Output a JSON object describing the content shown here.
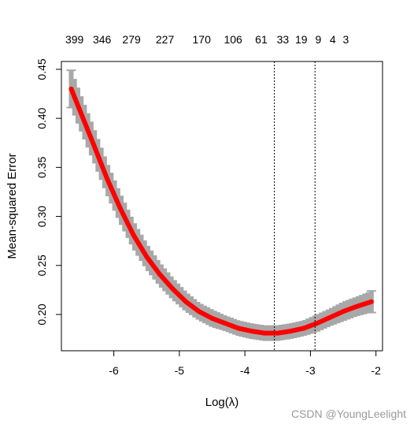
{
  "chart_data": {
    "type": "line",
    "xlabel": "Log(λ)",
    "ylabel": "Mean-squared Error",
    "xlim": [
      -6.8,
      -1.9
    ],
    "ylim": [
      0.163,
      0.458
    ],
    "x_ticks": [
      -6,
      -5,
      -4,
      -3,
      -2
    ],
    "y_ticks": [
      0.2,
      0.25,
      0.3,
      0.35,
      0.4,
      0.45
    ],
    "top_axis": {
      "x": [
        -6.6,
        -6.18,
        -5.73,
        -5.22,
        -4.66,
        -4.18,
        -3.75,
        -3.42,
        -3.14,
        -2.88,
        -2.66,
        -2.46
      ],
      "labels": [
        "399",
        "346",
        "279",
        "227",
        "170",
        "106",
        "61",
        "33",
        "19",
        "9",
        "4",
        "3"
      ]
    },
    "vlines": [
      -3.55,
      -2.93
    ],
    "series": [
      {
        "x": [
          -6.65,
          -6.5,
          -6.3,
          -6.1,
          -5.9,
          -5.7,
          -5.5,
          -5.3,
          -5.1,
          -4.9,
          -4.7,
          -4.5,
          -4.3,
          -4.1,
          -3.9,
          -3.7,
          -3.5,
          -3.3,
          -3.1,
          -2.9,
          -2.7,
          -2.5,
          -2.3,
          -2.07
        ],
        "values": [
          0.43,
          0.405,
          0.372,
          0.338,
          0.308,
          0.281,
          0.259,
          0.241,
          0.226,
          0.213,
          0.203,
          0.196,
          0.191,
          0.186,
          0.183,
          0.181,
          0.181,
          0.183,
          0.186,
          0.191,
          0.197,
          0.203,
          0.208,
          0.213
        ],
        "errors": [
          0.019,
          0.018,
          0.017,
          0.016,
          0.015,
          0.014,
          0.013,
          0.012,
          0.011,
          0.01,
          0.009,
          0.009,
          0.008,
          0.008,
          0.008,
          0.008,
          0.008,
          0.008,
          0.008,
          0.009,
          0.009,
          0.01,
          0.01,
          0.011
        ]
      }
    ],
    "colors": {
      "line": "#ff0000",
      "band": "#a8a8a8",
      "axis": "#000000"
    }
  },
  "watermark": "CSDN @YoungLeelight"
}
